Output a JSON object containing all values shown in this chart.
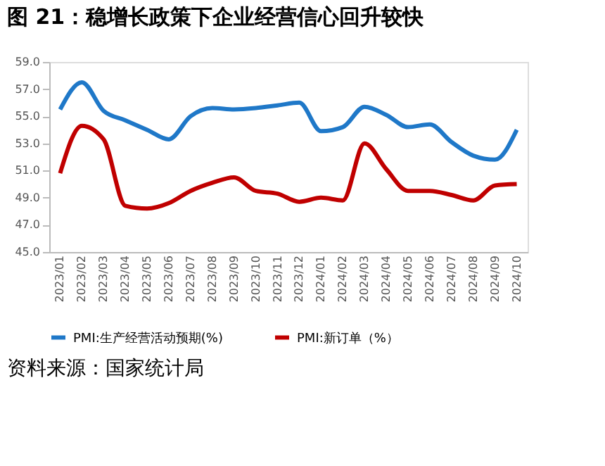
{
  "chart_data": {
    "type": "line",
    "title": "图 21：稳增长政策下企业经营信心回升较快",
    "categories": [
      "2023/01",
      "2023/02",
      "2023/03",
      "2023/04",
      "2023/05",
      "2023/06",
      "2023/07",
      "2023/08",
      "2023/09",
      "2023/10",
      "2023/11",
      "2023/12",
      "2024/01",
      "2024/02",
      "2024/03",
      "2024/04",
      "2024/05",
      "2024/06",
      "2024/07",
      "2024/08",
      "2024/09",
      "2024/10"
    ],
    "series": [
      {
        "name": "PMI:生产经营活动预期(%)",
        "color": "#1f78c8",
        "values": [
          55.5,
          57.5,
          55.4,
          54.7,
          54.0,
          53.3,
          55.0,
          55.6,
          55.5,
          55.6,
          55.8,
          56.0,
          53.9,
          54.2,
          55.7,
          55.1,
          54.2,
          54.4,
          53.1,
          52.1,
          51.8,
          54.0
        ]
      },
      {
        "name": "PMI:新订单（%）",
        "color": "#c00000",
        "values": [
          50.8,
          54.3,
          53.3,
          48.4,
          48.2,
          48.6,
          49.5,
          50.1,
          50.5,
          49.5,
          49.3,
          48.7,
          49.0,
          48.8,
          53.0,
          51.1,
          49.5,
          49.5,
          49.2,
          48.8,
          49.9,
          50.0
        ]
      }
    ],
    "ylim": [
      45,
      59
    ],
    "yticks": [
      {
        "value": 45,
        "label": "45.0"
      },
      {
        "value": 47,
        "label": "47.0"
      },
      {
        "value": 49,
        "label": "49.0"
      },
      {
        "value": 51,
        "label": "51.0"
      },
      {
        "value": 53,
        "label": "53.0"
      },
      {
        "value": 55,
        "label": "55.0"
      },
      {
        "value": 57,
        "label": "57.0"
      },
      {
        "value": 59,
        "label": "59.0"
      }
    ],
    "grid": false,
    "legend": "bottom",
    "marker": "none",
    "line_style": "solid",
    "annotations": [
      "资料来源：国家统计局"
    ]
  }
}
